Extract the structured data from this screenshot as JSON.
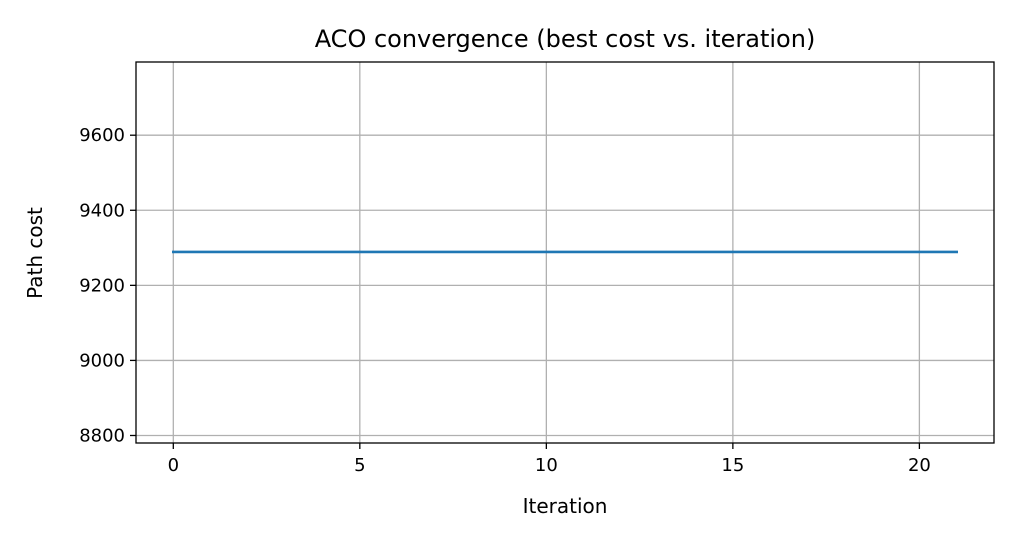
{
  "chart_data": {
    "type": "line",
    "title": "ACO convergence (best cost vs. iteration)",
    "xlabel": "Iteration",
    "ylabel": "Path cost",
    "xlim": [
      -1,
      22
    ],
    "ylim": [
      8780,
      9795
    ],
    "xticks": [
      0,
      5,
      10,
      15,
      20
    ],
    "yticks": [
      8800,
      9000,
      9200,
      9400,
      9600
    ],
    "grid": true,
    "series": [
      {
        "color": "#1f77b4",
        "x": [
          0,
          1,
          2,
          3,
          4,
          5,
          6,
          7,
          8,
          9,
          10,
          11,
          12,
          13,
          14,
          15,
          16,
          17,
          18,
          19,
          20,
          21
        ],
        "y": [
          9289,
          9289,
          9289,
          9289,
          9289,
          9289,
          9289,
          9289,
          9289,
          9289,
          9289,
          9289,
          9289,
          9289,
          9289,
          9289,
          9289,
          9289,
          9289,
          9289,
          9289,
          9289
        ]
      }
    ]
  }
}
